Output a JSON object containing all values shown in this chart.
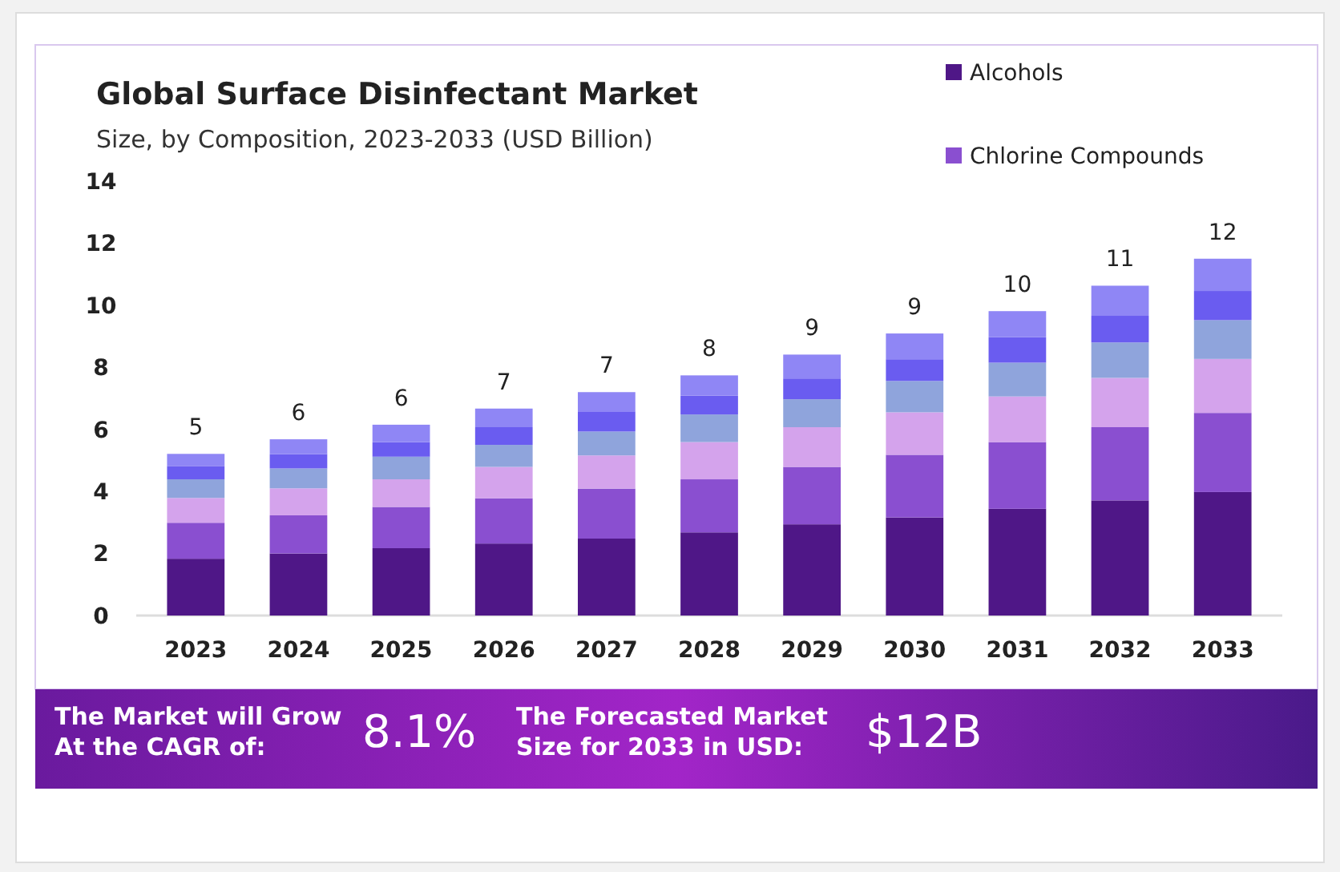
{
  "chart_data": {
    "type": "bar",
    "title": "Global Surface Disinfectant Market",
    "subtitle": "Size, by Composition, 2023-2033 (USD Billion)",
    "categories": [
      "2023",
      "2024",
      "2025",
      "2026",
      "2027",
      "2028",
      "2029",
      "2030",
      "2031",
      "2032",
      "2033"
    ],
    "stacked": true,
    "legend": "top right",
    "grid": false,
    "ylim": [
      0,
      14
    ],
    "yticks": [
      0,
      2,
      4,
      6,
      8,
      10,
      12,
      14
    ],
    "series": [
      {
        "name": "Alcohols",
        "color": "#4f1787",
        "values": [
          1.83,
          2.0,
          2.17,
          2.32,
          2.48,
          2.68,
          2.94,
          3.16,
          3.44,
          3.71,
          3.98
        ]
      },
      {
        "name": "Chlorine Compounds",
        "color": "#8a4fd0",
        "values": [
          1.16,
          1.23,
          1.33,
          1.46,
          1.61,
          1.71,
          1.85,
          2.02,
          2.15,
          2.36,
          2.55
        ]
      },
      {
        "color": "#d4a3ec",
        "values": [
          0.8,
          0.87,
          0.89,
          1.01,
          1.07,
          1.2,
          1.28,
          1.37,
          1.47,
          1.59,
          1.74
        ]
      },
      {
        "color": "#8fa4dc",
        "values": [
          0.6,
          0.64,
          0.73,
          0.71,
          0.77,
          0.89,
          0.9,
          1.01,
          1.09,
          1.14,
          1.25
        ]
      },
      {
        "color": "#6a5cf0",
        "values": [
          0.43,
          0.46,
          0.47,
          0.57,
          0.65,
          0.61,
          0.67,
          0.7,
          0.82,
          0.86,
          0.94
        ]
      },
      {
        "color": "#8f86f5",
        "values": [
          0.39,
          0.48,
          0.56,
          0.6,
          0.62,
          0.65,
          0.77,
          0.83,
          0.84,
          0.97,
          1.04
        ]
      }
    ],
    "totals": [
      "5",
      "6",
      "6",
      "7",
      "7",
      "8",
      "9",
      "9",
      "10",
      "11",
      "12"
    ],
    "annotations": [
      "The Market will Grow\nAt the CAGR of:",
      "8.1%",
      "The Forecasted Market\nSize for 2033 in USD:",
      "$12B"
    ]
  }
}
